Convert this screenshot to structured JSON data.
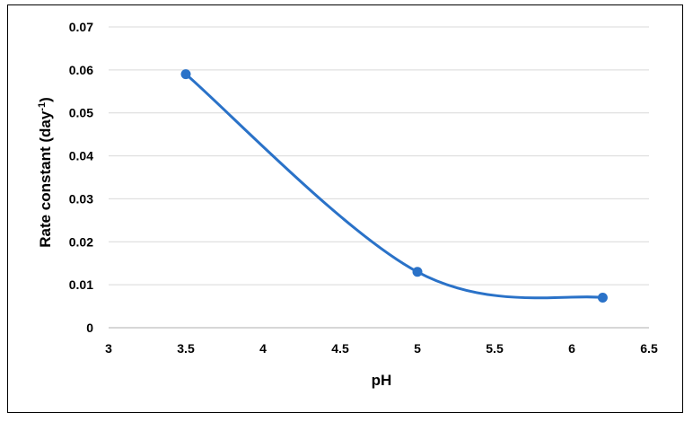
{
  "chart_data": {
    "type": "line",
    "xlabel": "pH",
    "ylabel_text": "Rate constant (day",
    "ylabel_sup": "-1",
    "ylabel_close": ")",
    "xlim": [
      3,
      6.5
    ],
    "ylim": [
      0,
      0.07
    ],
    "x_ticks": [
      "3",
      "3.5",
      "4",
      "4.5",
      "5",
      "5.5",
      "6",
      "6.5"
    ],
    "y_ticks": [
      "0",
      "0.01",
      "0.02",
      "0.03",
      "0.04",
      "0.05",
      "0.06",
      "0.07"
    ],
    "grid": true,
    "smooth": true,
    "series": [
      {
        "x": [
          3.5,
          5,
          6.2
        ],
        "y": [
          0.059,
          0.013,
          0.007
        ],
        "color": "#2a72c8"
      }
    ]
  }
}
